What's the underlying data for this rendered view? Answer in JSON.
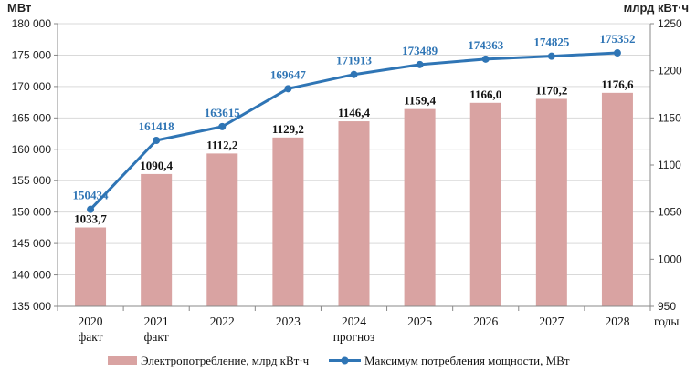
{
  "chart_data": {
    "type": "bar+line",
    "left_axis_title": "МВт",
    "right_axis_title": "млрд кВт·ч",
    "x_axis_title": "годы",
    "categories": [
      "2020",
      "2021",
      "2022",
      "2023",
      "2024",
      "2025",
      "2026",
      "2027",
      "2028"
    ],
    "category_sublabels": [
      "факт",
      "факт",
      "",
      "",
      "прогноз",
      "",
      "",
      "",
      ""
    ],
    "left_ylim": [
      135000,
      180000
    ],
    "left_ticks": [
      "135 000",
      "140 000",
      "145 000",
      "150 000",
      "155 000",
      "160 000",
      "165 000",
      "170 000",
      "175 000",
      "180 000"
    ],
    "right_ylim": [
      950,
      1250
    ],
    "right_ticks": [
      "950",
      "1000",
      "1050",
      "1100",
      "1150",
      "1200",
      "1250"
    ],
    "series": [
      {
        "name": "Электропотребление, млрд кВт·ч",
        "type": "bar",
        "axis": "right",
        "color": "#d9a3a2",
        "values": [
          1033.7,
          1090.4,
          1112.2,
          1129.2,
          1146.4,
          1159.4,
          1166.0,
          1170.2,
          1176.6
        ],
        "labels": [
          "1033,7",
          "1090,4",
          "1112,2",
          "1129,2",
          "1146,4",
          "1159,4",
          "1166,0",
          "1170,2",
          "1176,6"
        ]
      },
      {
        "name": "Максимум потребления мощности, МВт",
        "type": "line",
        "axis": "left",
        "color": "#2f75b5",
        "values": [
          150434,
          161418,
          163615,
          169647,
          171913,
          173489,
          174363,
          174825,
          175352
        ],
        "labels": [
          "150434",
          "161418",
          "163615",
          "169647",
          "171913",
          "173489",
          "174363",
          "174825",
          "175352"
        ]
      }
    ]
  }
}
